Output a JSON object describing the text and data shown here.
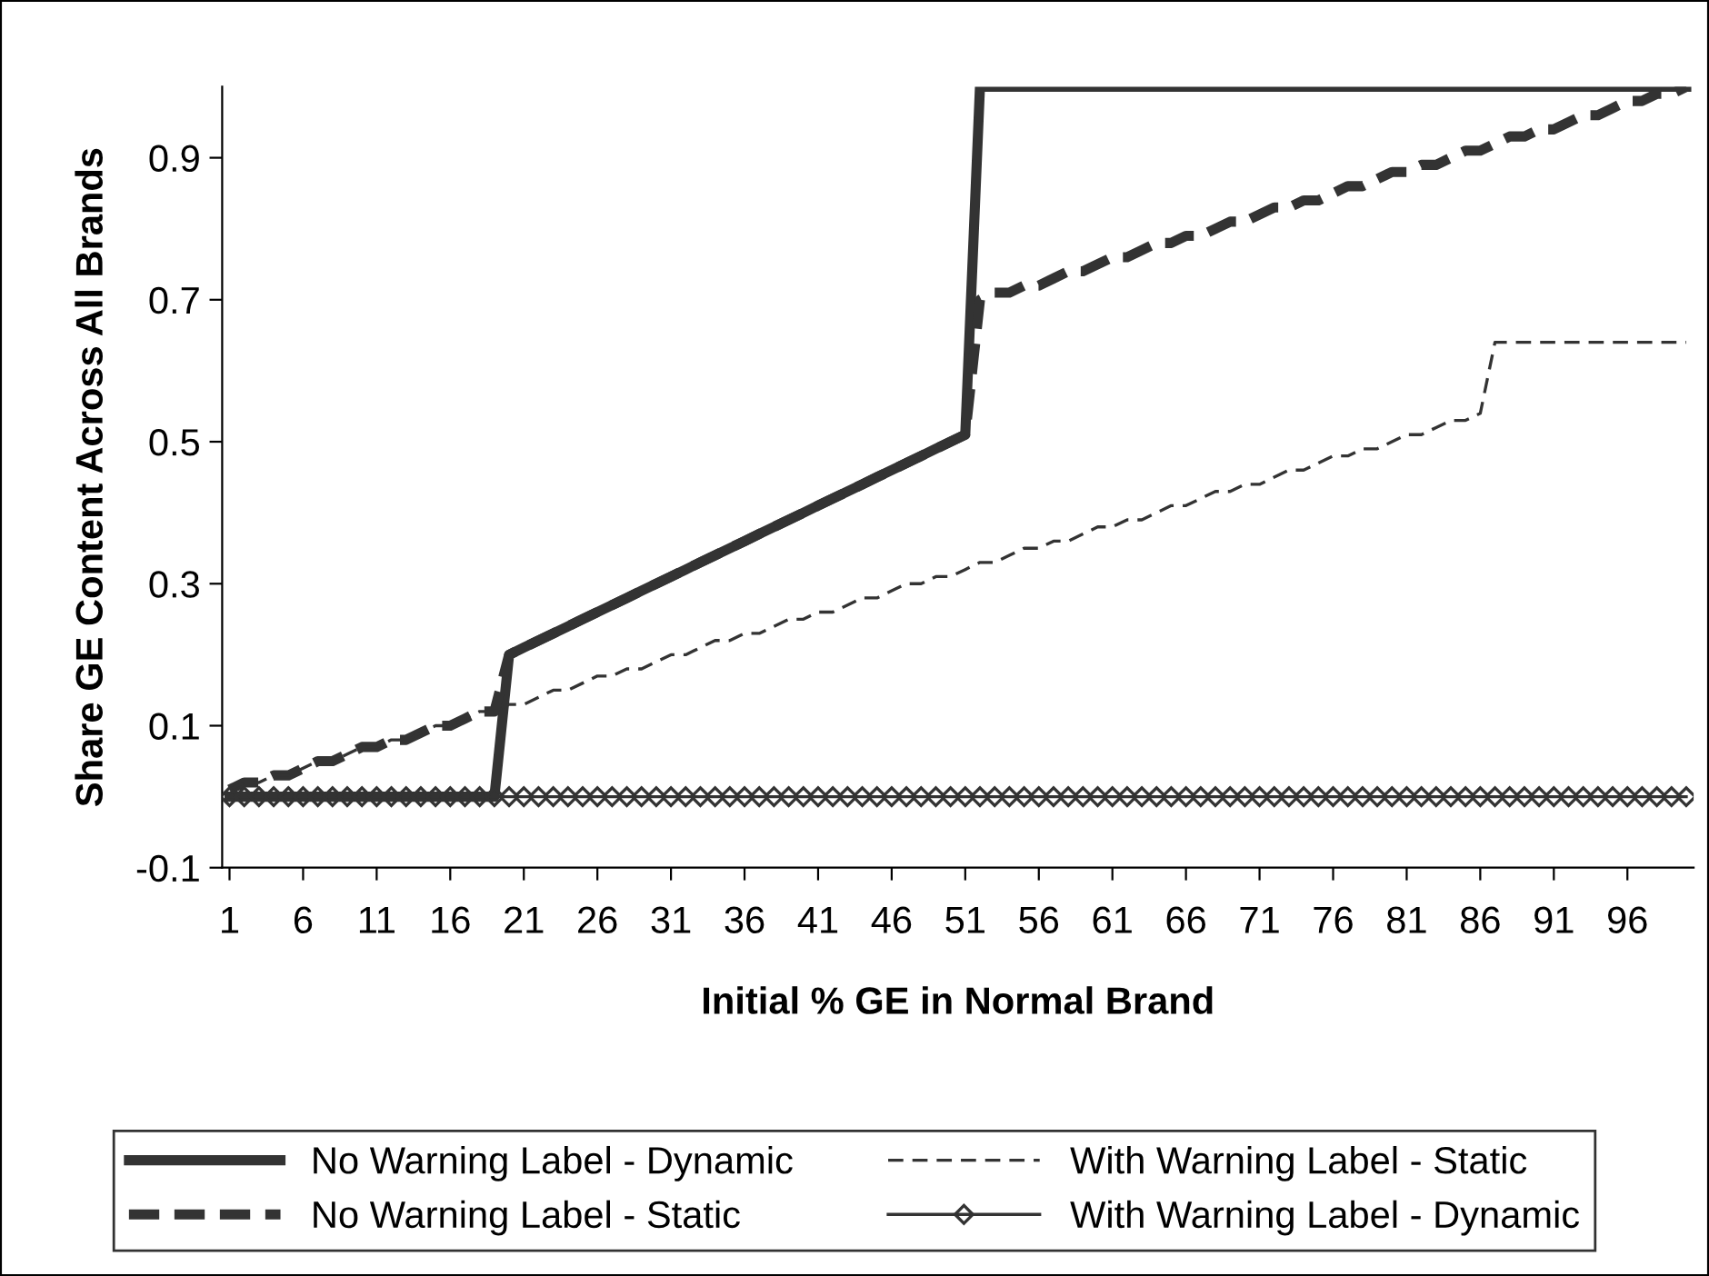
{
  "chart_data": {
    "type": "line",
    "xlabel": "Initial % GE in Normal Brand",
    "ylabel": "Share GE Content Across All Brands",
    "categories": [
      "1",
      null,
      null,
      null,
      null,
      "6",
      null,
      null,
      null,
      null,
      "11",
      null,
      null,
      null,
      null,
      "16",
      null,
      null,
      null,
      null,
      "21",
      null,
      null,
      null,
      null,
      "26",
      null,
      null,
      null,
      null,
      "31",
      null,
      null,
      null,
      null,
      "36",
      null,
      null,
      null,
      null,
      "41",
      null,
      null,
      null,
      null,
      "46",
      null,
      null,
      null,
      null,
      "51",
      null,
      null,
      null,
      null,
      "56",
      null,
      null,
      null,
      null,
      "61",
      null,
      null,
      null,
      null,
      "66",
      null,
      null,
      null,
      null,
      "71",
      null,
      null,
      null,
      null,
      "76",
      null,
      null,
      null,
      null,
      "81",
      null,
      null,
      null,
      null,
      "86",
      null,
      null,
      null,
      null,
      "91",
      null,
      null,
      null,
      null,
      "96",
      null,
      null,
      null,
      null
    ],
    "series": [
      {
        "name": "No Warning Label - Dynamic",
        "color": "#333333",
        "line_style": "solid",
        "marker": "none",
        "values": [
          0,
          0,
          0,
          0,
          0,
          0,
          0,
          0,
          0,
          0,
          0,
          0,
          0,
          0,
          0,
          0,
          0,
          0,
          0,
          0.2,
          0.21,
          0.22,
          0.23,
          0.24,
          0.25,
          0.26,
          0.27,
          0.28,
          0.29,
          0.3,
          0.31,
          0.32,
          0.33,
          0.34,
          0.35,
          0.36,
          0.37,
          0.38,
          0.39,
          0.4,
          0.41,
          0.42,
          0.43,
          0.44,
          0.45,
          0.46,
          0.47,
          0.48,
          0.49,
          0.5,
          0.51,
          1.0,
          1.0,
          1.0,
          1.0,
          1.0,
          1.0,
          1.0,
          1.0,
          1.0,
          1.0,
          1.0,
          1.0,
          1.0,
          1.0,
          1.0,
          1.0,
          1.0,
          1.0,
          1.0,
          1.0,
          1.0,
          1.0,
          1.0,
          1.0,
          1.0,
          1.0,
          1.0,
          1.0,
          1.0,
          1.0,
          1.0,
          1.0,
          1.0,
          1.0,
          1.0,
          1.0,
          1.0,
          1.0,
          1.0,
          1.0,
          1.0,
          1.0,
          1.0,
          1.0,
          1.0,
          1.0,
          1.0,
          1.0,
          1.0
        ]
      },
      {
        "name": "No Warning Label - Static",
        "color": "#333333",
        "line_style": "dashed",
        "marker": "none",
        "values": [
          0.01,
          0.02,
          0.02,
          0.03,
          0.03,
          0.04,
          0.05,
          0.05,
          0.06,
          0.07,
          0.07,
          0.08,
          0.08,
          0.09,
          0.1,
          0.1,
          0.11,
          0.12,
          0.12,
          0.2,
          0.21,
          0.22,
          0.23,
          0.24,
          0.25,
          0.26,
          0.27,
          0.28,
          0.29,
          0.3,
          0.31,
          0.32,
          0.33,
          0.34,
          0.35,
          0.36,
          0.37,
          0.38,
          0.39,
          0.4,
          0.41,
          0.42,
          0.43,
          0.44,
          0.45,
          0.46,
          0.47,
          0.48,
          0.49,
          0.5,
          0.51,
          0.7,
          0.71,
          0.71,
          0.72,
          0.72,
          0.73,
          0.74,
          0.74,
          0.75,
          0.76,
          0.76,
          0.77,
          0.78,
          0.78,
          0.79,
          0.79,
          0.8,
          0.81,
          0.81,
          0.82,
          0.83,
          0.83,
          0.84,
          0.84,
          0.85,
          0.86,
          0.86,
          0.87,
          0.88,
          0.88,
          0.89,
          0.89,
          0.9,
          0.91,
          0.91,
          0.92,
          0.93,
          0.93,
          0.94,
          0.94,
          0.95,
          0.96,
          0.96,
          0.97,
          0.98,
          0.98,
          0.99,
          0.99,
          1.0
        ]
      },
      {
        "name": "With Warning Label - Static",
        "color": "#333333",
        "line_style": "dashed",
        "marker": "none",
        "values": [
          0.01,
          0.02,
          0.02,
          0.03,
          0.03,
          0.04,
          0.05,
          0.05,
          0.06,
          0.07,
          0.07,
          0.08,
          0.08,
          0.09,
          0.1,
          0.1,
          0.11,
          0.12,
          0.12,
          0.13,
          0.13,
          0.14,
          0.15,
          0.15,
          0.16,
          0.17,
          0.17,
          0.18,
          0.18,
          0.19,
          0.2,
          0.2,
          0.21,
          0.22,
          0.22,
          0.23,
          0.23,
          0.24,
          0.25,
          0.25,
          0.26,
          0.26,
          0.27,
          0.28,
          0.28,
          0.29,
          0.3,
          0.3,
          0.31,
          0.31,
          0.32,
          0.33,
          0.33,
          0.34,
          0.35,
          0.35,
          0.36,
          0.36,
          0.37,
          0.38,
          0.38,
          0.39,
          0.39,
          0.4,
          0.41,
          0.41,
          0.42,
          0.43,
          0.43,
          0.44,
          0.44,
          0.45,
          0.46,
          0.46,
          0.47,
          0.48,
          0.48,
          0.49,
          0.49,
          0.5,
          0.51,
          0.51,
          0.52,
          0.53,
          0.53,
          0.54,
          0.64,
          0.64,
          0.64,
          0.64,
          0.64,
          0.64,
          0.64,
          0.64,
          0.64,
          0.64,
          0.64,
          0.64,
          0.64,
          0.64
        ]
      },
      {
        "name": "With Warning Label - Dynamic",
        "color": "#333333",
        "line_style": "solid",
        "marker": "diamond",
        "values": [
          0,
          0,
          0,
          0,
          0,
          0,
          0,
          0,
          0,
          0,
          0,
          0,
          0,
          0,
          0,
          0,
          0,
          0,
          0,
          0,
          0,
          0,
          0,
          0,
          0,
          0,
          0,
          0,
          0,
          0,
          0,
          0,
          0,
          0,
          0,
          0,
          0,
          0,
          0,
          0,
          0,
          0,
          0,
          0,
          0,
          0,
          0,
          0,
          0,
          0,
          0,
          0,
          0,
          0,
          0,
          0,
          0,
          0,
          0,
          0,
          0,
          0,
          0,
          0,
          0,
          0,
          0,
          0,
          0,
          0,
          0,
          0,
          0,
          0,
          0,
          0,
          0,
          0,
          0,
          0,
          0,
          0,
          0,
          0,
          0,
          0,
          0,
          0,
          0,
          0,
          0,
          0,
          0,
          0,
          0,
          0,
          0,
          0,
          0,
          0
        ]
      }
    ],
    "ylim": [
      -0.1,
      1.0
    ],
    "yticks": [
      -0.1,
      0.1,
      0.3,
      0.5,
      0.7,
      0.9
    ],
    "grid": false,
    "legend": "bottom"
  }
}
